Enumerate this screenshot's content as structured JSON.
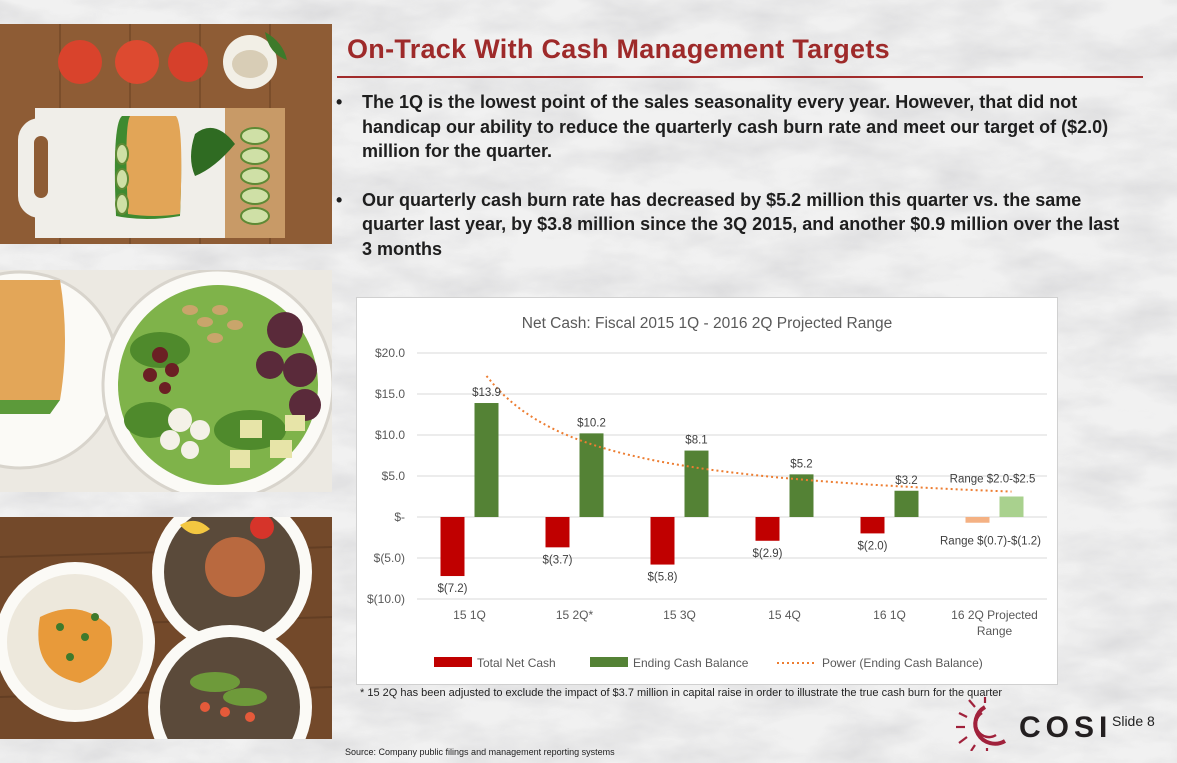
{
  "title": "On-Track With Cash Management Targets",
  "bullets": [
    "The 1Q is the lowest point of the sales seasonality every year. However, that did not handicap our ability to reduce the quarterly cash burn rate and meet our target of ($2.0) million for the quarter.",
    "Our quarterly cash burn rate has decreased by $5.2 million this quarter vs. the same quarter last year, by $3.8 million since the 3Q 2015, and another $0.9 million over the last 3 months"
  ],
  "bullet_symbol": "•",
  "footnote": "* 15 2Q has been adjusted to exclude the impact of $3.7 million in capital raise in order to illustrate the true cash burn for the quarter",
  "source": "Source: Company public filings and management reporting systems",
  "logo_text": "COSI",
  "slide_label": "Slide 8",
  "colors": {
    "title": "#9e2a2a",
    "net_cash": "#c00000",
    "ending_cash": "#548235",
    "net_cash_projected": "#f4b183",
    "ending_cash_projected": "#a9d18e",
    "trend": "#ed7d31",
    "logo_red": "#a0213b"
  },
  "chart_data": {
    "type": "bar",
    "title": "Net Cash: Fiscal 2015 1Q - 2016 2Q Projected Range",
    "categories": [
      "15 1Q",
      "15 2Q*",
      "15 3Q",
      "15 4Q",
      "16 1Q",
      "16 2Q Projected Range"
    ],
    "series": [
      {
        "name": "Total Net Cash",
        "values": [
          -7.2,
          -3.7,
          -5.8,
          -2.9,
          -2.0,
          -0.7
        ],
        "labels": [
          "$(7.2)",
          "$(3.7)",
          "$(5.8)",
          "$(2.9)",
          "$(2.0)",
          "Range $(0.7)-$(1.2)"
        ]
      },
      {
        "name": "Ending Cash Balance",
        "values": [
          13.9,
          10.2,
          8.1,
          5.2,
          3.2,
          2.5
        ],
        "labels": [
          "$13.9",
          "$10.2",
          "$8.1",
          "$5.2",
          "$3.2",
          "Range $2.0-$2.5"
        ]
      }
    ],
    "trendline": {
      "name": "Power (Ending Cash Balance)",
      "type": "power",
      "start": 17.2,
      "end": 3.1
    },
    "ylim": [
      -10,
      20
    ],
    "yticks": [
      20,
      15,
      10,
      5,
      0,
      -5,
      -10
    ],
    "ytick_labels": [
      "$20.0",
      "$15.0",
      "$10.0",
      "$5.0",
      "$-",
      "$(5.0)",
      "$(10.0)"
    ],
    "grid": true,
    "legend_position": "bottom"
  }
}
